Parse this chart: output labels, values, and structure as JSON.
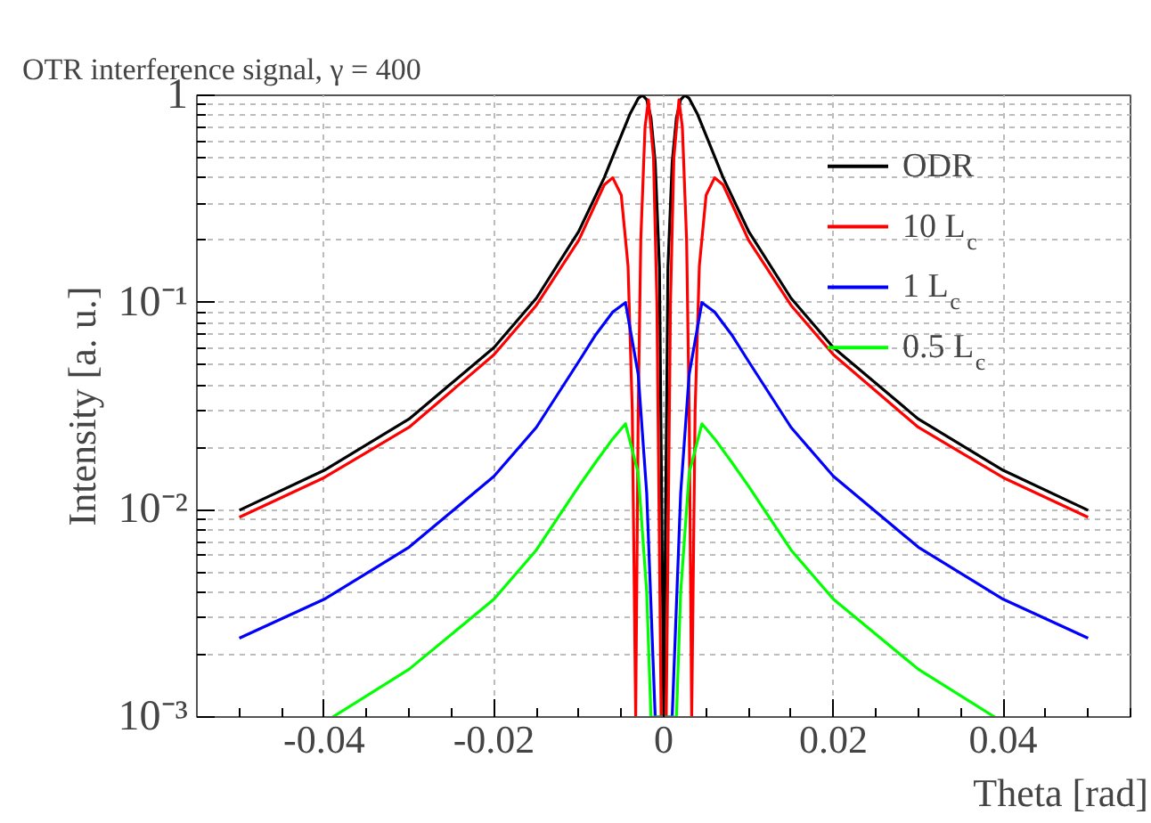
{
  "chart_data": {
    "type": "line",
    "title": "OTR interference signal, γ = 400",
    "xlabel": "Theta [rad]",
    "ylabel": "Intensity [a. u.]",
    "log": "y",
    "grid": true,
    "legend": "top right",
    "line_style": "solid",
    "xlim": [
      -0.055,
      0.055
    ],
    "xticks": [
      -0.04,
      -0.02,
      0,
      0.02,
      0.04
    ],
    "ylim": [
      0.001,
      1
    ],
    "yticks": [
      {
        "value": 0.001,
        "label": "10⁻³"
      },
      {
        "value": 0.01,
        "label": "10⁻²"
      },
      {
        "value": 0.1,
        "label": "10⁻¹"
      },
      1
    ],
    "series": [
      {
        "name": "ODR",
        "color": "#000000",
        "x": [
          -0.05,
          -0.04,
          -0.03,
          -0.02,
          -0.015,
          -0.01,
          -0.007,
          -0.005,
          -0.004,
          -0.003,
          -0.0025,
          -0.002,
          -0.0015,
          -0.001,
          -0.0005,
          0,
          0.0005,
          0.001,
          0.0015,
          0.002,
          0.0025,
          0.003,
          0.004,
          0.005,
          0.007,
          0.01,
          0.015,
          0.02,
          0.03,
          0.04,
          0.05
        ],
        "values": [
          0.00995,
          0.0155,
          0.0274,
          0.0606,
          0.105,
          0.221,
          0.401,
          0.64,
          0.808,
          0.967,
          1,
          0.952,
          0.779,
          0.476,
          0.148,
          0.001,
          0.148,
          0.476,
          0.779,
          0.952,
          1,
          0.967,
          0.808,
          0.64,
          0.401,
          0.221,
          0.105,
          0.0606,
          0.0274,
          0.0155,
          0.00995
        ]
      },
      {
        "name": "10 L$_{c}$",
        "color": "#ff0000",
        "x": [
          -0.05,
          -0.04,
          -0.03,
          -0.02,
          -0.015,
          -0.01,
          -0.007,
          -0.006,
          -0.005,
          -0.0042,
          -0.0037,
          -0.0033,
          -0.003,
          -0.0027,
          -0.0022,
          -0.0018,
          -0.0012,
          -0.0008,
          -0.0003,
          0,
          0.0003,
          0.0008,
          0.0012,
          0.0018,
          0.0022,
          0.0027,
          0.003,
          0.0033,
          0.0037,
          0.0042,
          0.005,
          0.006,
          0.007,
          0.01,
          0.015,
          0.02,
          0.03,
          0.04,
          0.05
        ],
        "values": [
          0.0092,
          0.0143,
          0.025,
          0.056,
          0.097,
          0.2,
          0.37,
          0.4,
          0.33,
          0.15,
          0.03,
          0.001,
          0.03,
          0.2,
          0.7,
          0.95,
          0.5,
          0.1,
          0.001,
          0.001,
          0.001,
          0.1,
          0.5,
          0.95,
          0.7,
          0.2,
          0.03,
          0.001,
          0.03,
          0.15,
          0.33,
          0.4,
          0.37,
          0.2,
          0.097,
          0.056,
          0.025,
          0.0143,
          0.0092
        ]
      },
      {
        "name": "1 L$_{c}$",
        "color": "#0000ff",
        "x": [
          -0.05,
          -0.04,
          -0.03,
          -0.02,
          -0.015,
          -0.01,
          -0.008,
          -0.006,
          -0.0045,
          -0.003,
          -0.002,
          -0.001,
          0.001,
          0.002,
          0.003,
          0.0045,
          0.006,
          0.008,
          0.01,
          0.015,
          0.02,
          0.03,
          0.04,
          0.05
        ],
        "values": [
          0.0024,
          0.0037,
          0.0066,
          0.0145,
          0.025,
          0.052,
          0.07,
          0.09,
          0.1,
          0.045,
          0.012,
          0.001,
          0.001,
          0.012,
          0.045,
          0.1,
          0.09,
          0.07,
          0.052,
          0.025,
          0.0145,
          0.0066,
          0.0037,
          0.0024
        ]
      },
      {
        "name": "0.5 L$_{c}$",
        "color": "#00ff00",
        "x": [
          -0.039,
          -0.03,
          -0.02,
          -0.015,
          -0.01,
          -0.008,
          -0.006,
          -0.0045,
          -0.003,
          -0.002,
          -0.0015,
          0,
          0.0015,
          0.002,
          0.003,
          0.0045,
          0.006,
          0.008,
          0.01,
          0.015,
          0.02,
          0.03,
          0.039
        ],
        "values": [
          0.001,
          0.0017,
          0.0037,
          0.0064,
          0.013,
          0.017,
          0.022,
          0.026,
          0.015,
          0.004,
          0.001,
          0.001,
          0.001,
          0.004,
          0.015,
          0.026,
          0.022,
          0.017,
          0.013,
          0.0064,
          0.0037,
          0.0017,
          0.001
        ]
      }
    ]
  }
}
